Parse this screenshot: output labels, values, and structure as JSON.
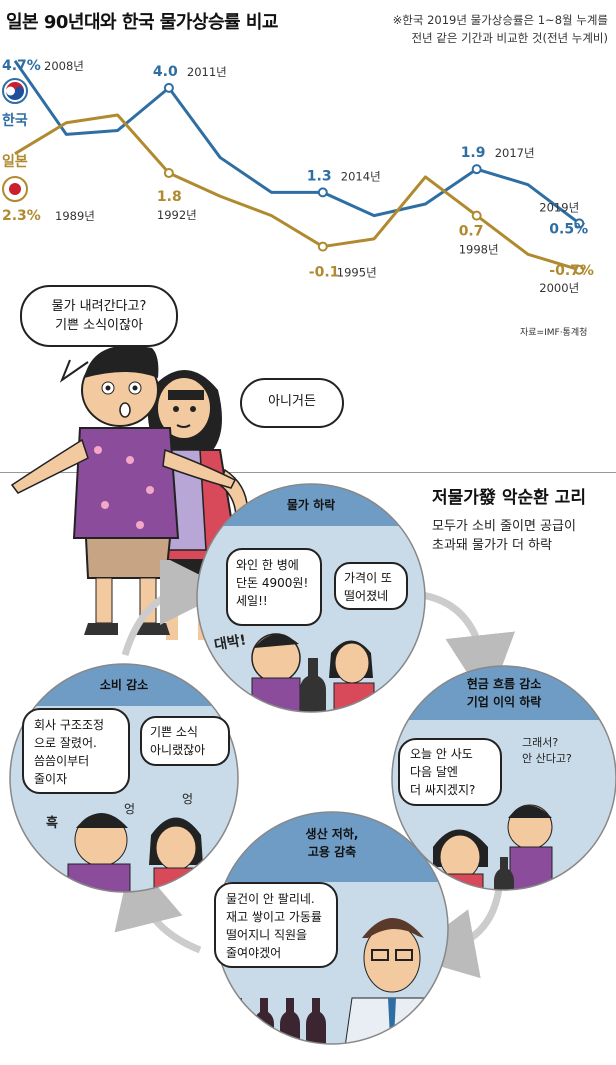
{
  "title": "일본 90년대와 한국 물가상승률 비교",
  "note_lines": [
    "※한국 2019년 물가상승률은 1~8월 누계를",
    "전년 같은 기간과 비교한 것(전년 누계비)"
  ],
  "source": "자료=IMF·통계청",
  "colors": {
    "korea": "#2f6ea3",
    "japan": "#b08a2e",
    "panel": "#c9dbe8",
    "panel_header": "#6f9cc4"
  },
  "chart_data": {
    "type": "line",
    "title": "일본 90년대와 한국 물가상승률 비교",
    "series": [
      {
        "name": "한국",
        "x": [
          "2008년",
          "2009년",
          "2010년",
          "2011년",
          "2012년",
          "2013년",
          "2014년",
          "2015년",
          "2016년",
          "2017년",
          "2018년",
          "2019년"
        ],
        "values": [
          4.7,
          2.8,
          2.9,
          4.0,
          2.2,
          1.3,
          1.3,
          0.7,
          1.0,
          1.9,
          1.5,
          0.5
        ]
      },
      {
        "name": "일본",
        "x": [
          "1989년",
          "1990년",
          "1991년",
          "1992년",
          "1993년",
          "1994년",
          "1995년",
          "1996년",
          "1997년",
          "1998년",
          "1999년",
          "2000년"
        ],
        "values": [
          2.3,
          3.1,
          3.3,
          1.8,
          1.2,
          0.7,
          -0.1,
          0.1,
          1.7,
          0.7,
          -0.3,
          -0.7
        ]
      }
    ],
    "labels": [
      {
        "series": "한국",
        "value": "4.7%",
        "year": "2008년"
      },
      {
        "series": "한국",
        "value": "4.0",
        "year": "2011년"
      },
      {
        "series": "한국",
        "value": "1.3",
        "year": "2014년"
      },
      {
        "series": "한국",
        "value": "1.9",
        "year": "2017년"
      },
      {
        "series": "한국",
        "value": "0.5%",
        "year": "2019년"
      },
      {
        "series": "일본",
        "value": "2.3%",
        "year": "1989년"
      },
      {
        "series": "일본",
        "value": "1.8",
        "year": "1992년"
      },
      {
        "series": "일본",
        "value": "-0.1",
        "year": "1995년"
      },
      {
        "series": "일본",
        "value": "0.7",
        "year": "1998년"
      },
      {
        "series": "일본",
        "value": "-0.7%",
        "year": "2000년"
      }
    ],
    "series_tags": {
      "korea": "한국",
      "japan": "일본"
    }
  },
  "comic_top": {
    "man_bubble": [
      "물가 내려간다고?",
      "기쁜 소식이잖아"
    ],
    "woman_bubble": "아니거든"
  },
  "cycle": {
    "title": "저물가發 악순환 고리",
    "desc": [
      "모두가 소비 줄이면 공급이",
      "초과돼 물가가 더 하락"
    ],
    "panels": {
      "price_drop": {
        "title": "물가 하락",
        "bubble1": [
          "와인 한 병에",
          "단돈 4900원!",
          "세일!!"
        ],
        "bubble2": [
          "가격이 또",
          "떨어졌네"
        ],
        "sfx": "대박!"
      },
      "cash_flow": {
        "title": [
          "현금 흐름 감소",
          "기업 이익 하락"
        ],
        "bubble1": [
          "오늘 안 사도",
          "다음 달엔",
          "더 싸지겠지?"
        ],
        "bubble2": [
          "그래서?",
          "안 산다고?"
        ]
      },
      "production": {
        "title": [
          "생산 저하,",
          "고용 감축"
        ],
        "bubble1": [
          "물건이 안 팔리네.",
          "재고 쌓이고 가동률",
          "떨어지니 직원을",
          "줄여야겠어"
        ]
      },
      "consumption": {
        "title": "소비 감소",
        "bubble1": [
          "회사 구조조정",
          "으로 잘렸어.",
          "씀씀이부터",
          "줄이자"
        ],
        "bubble2": [
          "기쁜 소식",
          "아니랬잖아"
        ],
        "sfx1": "흑",
        "sfx2": "엉",
        "sfx3": "엉"
      }
    }
  }
}
